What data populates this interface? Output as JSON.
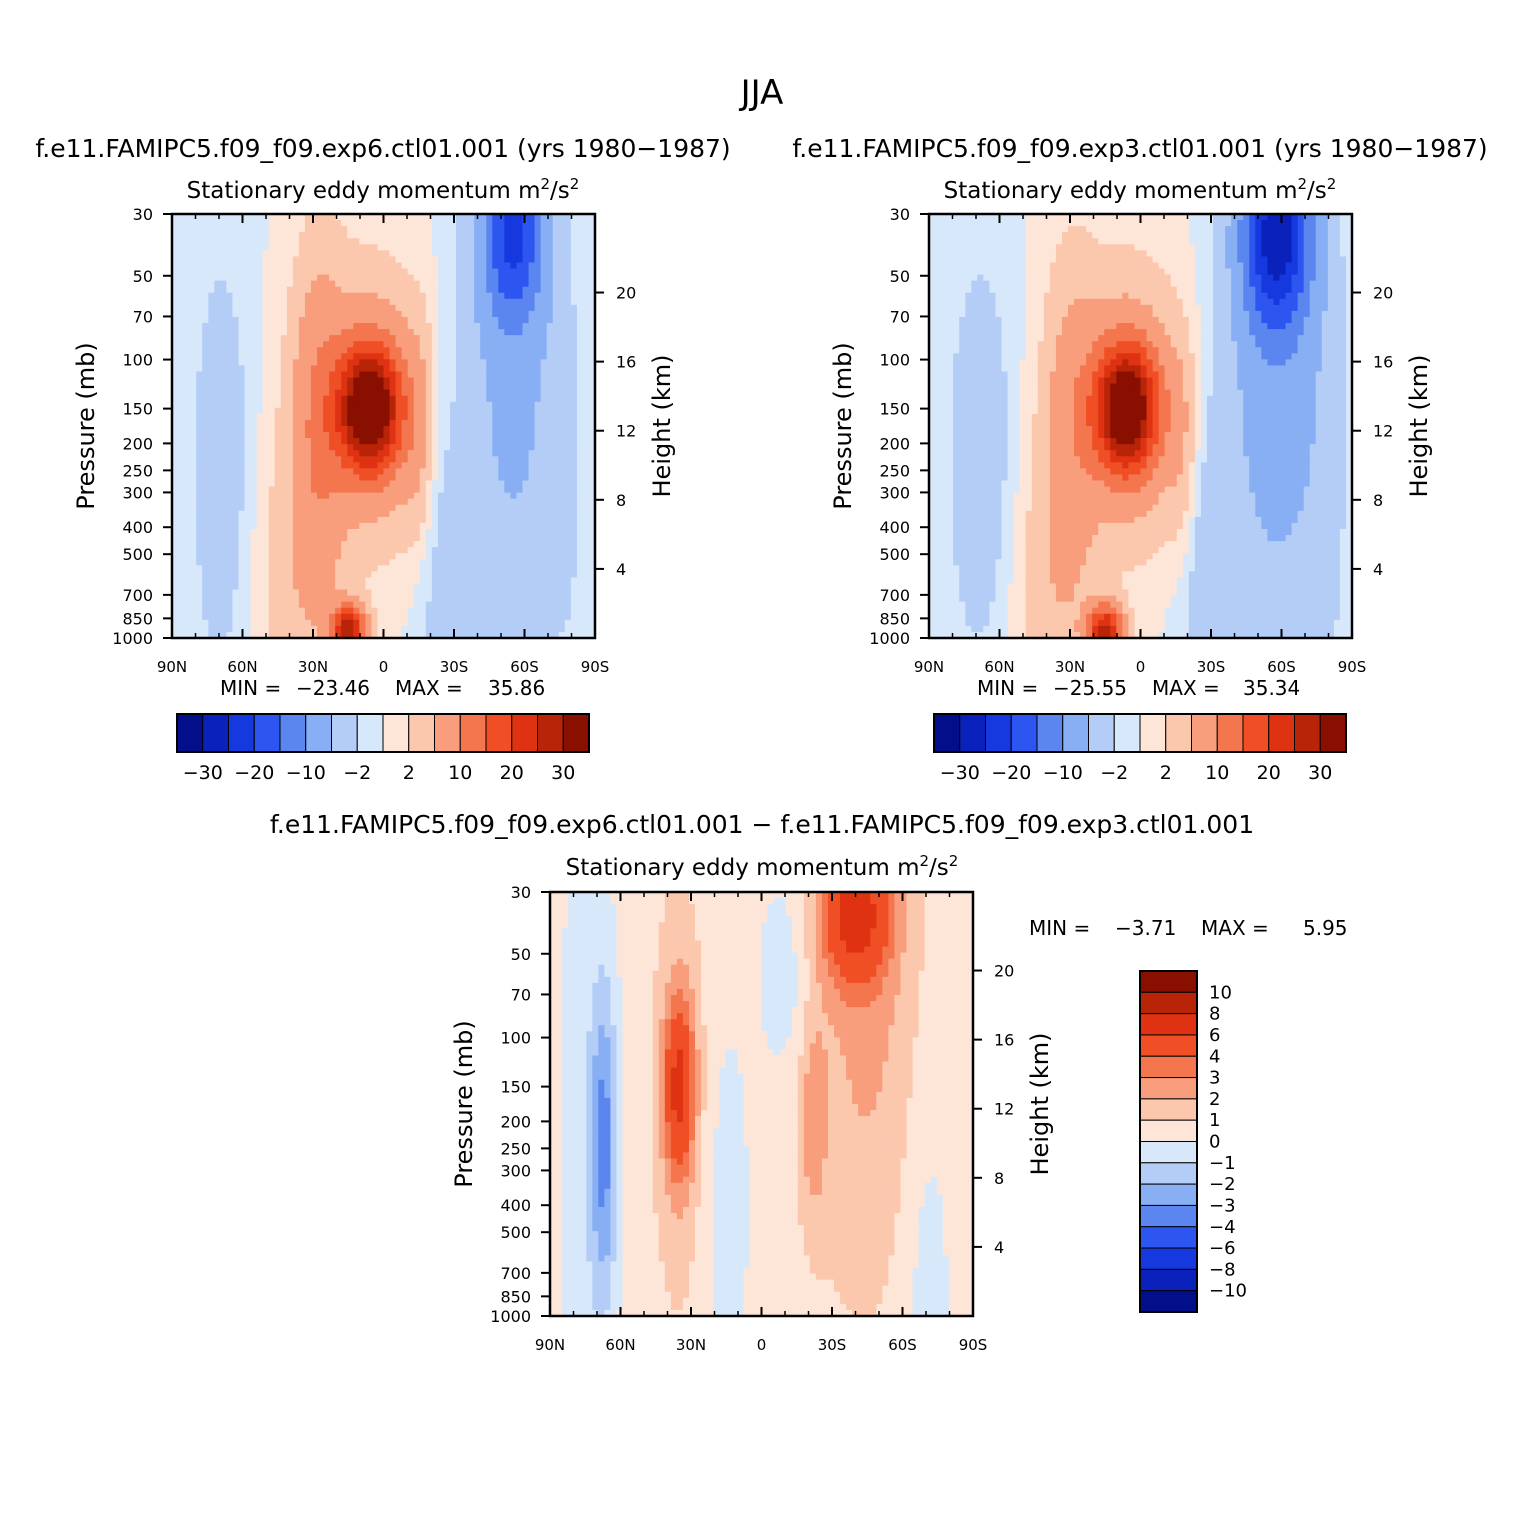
{
  "figure": {
    "title": "JJA"
  },
  "colors": {
    "pos": [
      "#fde6d8",
      "#fbc8ae",
      "#f89e7c",
      "#f4764e",
      "#f04f25",
      "#de3212",
      "#b82408",
      "#891000"
    ],
    "neg": [
      "#d8e8fb",
      "#b4cdf7",
      "#88aef3",
      "#5b86f0",
      "#2d55ef",
      "#1638df",
      "#0a22bb",
      "#030f8a"
    ],
    "palette": [
      "#030f8a",
      "#0a22bb",
      "#1638df",
      "#2d55ef",
      "#5b86f0",
      "#88aef3",
      "#b4cdf7",
      "#d8e8fb",
      "#fde6d8",
      "#fbc8ae",
      "#f89e7c",
      "#f4764e",
      "#f04f25",
      "#de3212",
      "#b82408",
      "#891000"
    ]
  },
  "chart_data": [
    {
      "type": "heatmap",
      "title": "f.e11.FAMIPC5.f09_f09.exp6.ctl01.001 (yrs 1980−1987)",
      "subtitle": "Stationary eddy momentum",
      "units_base": "m",
      "units_mid": "/s",
      "units_exp": "2",
      "xlabel": "",
      "ylabel": "Pressure (mb)",
      "y2label": "Height (km)",
      "xlim": [
        90,
        -90
      ],
      "x_ticks": [
        "90N",
        "60N",
        "30N",
        "0",
        "30S",
        "60S",
        "90S"
      ],
      "ylim": [
        30,
        1000
      ],
      "y_ticks": [
        "30",
        "50",
        "70",
        "100",
        "150",
        "200",
        "250",
        "300",
        "400",
        "500",
        "700",
        "850",
        "1000"
      ],
      "y2_ticks": [
        "20",
        "16",
        "12",
        "8",
        "4"
      ],
      "min_label": "MIN =",
      "min_value": "−23.46",
      "max_label": "MAX =",
      "max_value": "35.86",
      "colorbar_labels": [
        "−30",
        "−20",
        "−10",
        "−2",
        "2",
        "10",
        "20",
        "30"
      ],
      "levels": [
        -30,
        -25,
        -20,
        -15,
        -10,
        -5,
        -2,
        0,
        2,
        5,
        10,
        15,
        20,
        25,
        30
      ],
      "blobs": [
        {
          "lat": 6,
          "p": 150,
          "amp": 34,
          "slat": 9,
          "sz": 0.35
        },
        {
          "lat": 6,
          "p": 150,
          "amp": 8,
          "slat": 18,
          "sz": 0.8
        },
        {
          "lat": 28,
          "p": 180,
          "amp": 7,
          "slat": 8,
          "sz": 1.1
        },
        {
          "lat": 15,
          "p": 950,
          "amp": 28,
          "slat": 5,
          "sz": 0.15
        },
        {
          "lat": -15,
          "p": 200,
          "amp": 4,
          "slat": 5,
          "sz": 0.7
        },
        {
          "lat": 69,
          "p": 250,
          "amp": -4.2,
          "slat": 9,
          "sz": 1.3
        },
        {
          "lat": -25,
          "p": 500,
          "amp": -3.5,
          "slat": 9,
          "sz": 1.2
        },
        {
          "lat": -55,
          "p": 35,
          "amp": -18,
          "slat": 9,
          "sz": 0.5
        },
        {
          "lat": -55,
          "p": 120,
          "amp": -6,
          "slat": 15,
          "sz": 1.6
        },
        {
          "lat": 40,
          "p": 700,
          "amp": 3,
          "slat": 12,
          "sz": 0.9
        },
        {
          "lat": -80,
          "p": 600,
          "amp": -1.2,
          "slat": 8,
          "sz": 2
        }
      ]
    },
    {
      "type": "heatmap",
      "title": "f.e11.FAMIPC5.f09_f09.exp3.ctl01.001 (yrs 1980−1987)",
      "subtitle": "Stationary eddy momentum",
      "units_base": "m",
      "units_mid": "/s",
      "units_exp": "2",
      "xlabel": "",
      "ylabel": "Pressure (mb)",
      "y2label": "Height (km)",
      "xlim": [
        90,
        -90
      ],
      "x_ticks": [
        "90N",
        "60N",
        "30N",
        "0",
        "30S",
        "60S",
        "90S"
      ],
      "ylim": [
        30,
        1000
      ],
      "y_ticks": [
        "30",
        "50",
        "70",
        "100",
        "150",
        "200",
        "250",
        "300",
        "400",
        "500",
        "700",
        "850",
        "1000"
      ],
      "y2_ticks": [
        "20",
        "16",
        "12",
        "8",
        "4"
      ],
      "min_label": "MIN =",
      "min_value": "−25.55",
      "max_label": "MAX =",
      "max_value": "35.34",
      "colorbar_labels": [
        "−30",
        "−20",
        "−10",
        "−2",
        "2",
        "10",
        "20",
        "30"
      ],
      "levels": [
        -30,
        -25,
        -20,
        -15,
        -10,
        -5,
        -2,
        0,
        2,
        5,
        10,
        15,
        20,
        25,
        30
      ],
      "blobs": [
        {
          "lat": 6,
          "p": 150,
          "amp": 33,
          "slat": 9,
          "sz": 0.35
        },
        {
          "lat": 6,
          "p": 150,
          "amp": 8,
          "slat": 18,
          "sz": 0.8
        },
        {
          "lat": 30,
          "p": 190,
          "amp": 5,
          "slat": 8,
          "sz": 1.1
        },
        {
          "lat": 15,
          "p": 950,
          "amp": 27,
          "slat": 5,
          "sz": 0.15
        },
        {
          "lat": -18,
          "p": 220,
          "amp": 4,
          "slat": 5,
          "sz": 0.7
        },
        {
          "lat": 68,
          "p": 230,
          "amp": -4.5,
          "slat": 10,
          "sz": 1.2
        },
        {
          "lat": -27,
          "p": 500,
          "amp": -4,
          "slat": 9,
          "sz": 1.1
        },
        {
          "lat": -58,
          "p": 35,
          "amp": -24,
          "slat": 10,
          "sz": 0.55
        },
        {
          "lat": -58,
          "p": 120,
          "amp": -7,
          "slat": 16,
          "sz": 1.6
        },
        {
          "lat": 40,
          "p": 700,
          "amp": 3,
          "slat": 12,
          "sz": 0.9
        },
        {
          "lat": -80,
          "p": 600,
          "amp": -1.2,
          "slat": 8,
          "sz": 2
        }
      ]
    },
    {
      "type": "heatmap",
      "title": "f.e11.FAMIPC5.f09_f09.exp6.ctl01.001 − f.e11.FAMIPC5.f09_f09.exp3.ctl01.001",
      "subtitle": "Stationary eddy momentum",
      "units_base": "m",
      "units_mid": "/s",
      "units_exp": "2",
      "xlabel": "",
      "ylabel": "Pressure (mb)",
      "y2label": "Height (km)",
      "xlim": [
        90,
        -90
      ],
      "x_ticks": [
        "90N",
        "60N",
        "30N",
        "0",
        "30S",
        "60S",
        "90S"
      ],
      "ylim": [
        30,
        1000
      ],
      "y_ticks": [
        "30",
        "50",
        "70",
        "100",
        "150",
        "200",
        "250",
        "300",
        "400",
        "500",
        "700",
        "850",
        "1000"
      ],
      "y2_ticks": [
        "20",
        "16",
        "12",
        "8",
        "4"
      ],
      "min_label": "MIN =",
      "min_value": "−3.71",
      "max_label": "MAX =",
      "max_value": "5.95",
      "colorbar_labels": [
        "10",
        "8",
        "6",
        "4",
        "3",
        "2",
        "1",
        "0",
        "−1",
        "−2",
        "−3",
        "−4",
        "−6",
        "−8",
        "−10"
      ],
      "levels": [
        -10,
        -8,
        -6,
        -4,
        -3,
        -2,
        -1,
        0,
        1,
        2,
        3,
        4,
        6,
        8,
        10
      ],
      "blobs": [
        {
          "lat": 0,
          "p": 300,
          "amp": 0.45,
          "slat": 200,
          "sz": 10
        },
        {
          "lat": 75,
          "p": 300,
          "amp": -0.9,
          "slat": 8,
          "sz": 3
        },
        {
          "lat": 67,
          "p": 240,
          "amp": -3.5,
          "slat": 4,
          "sz": 0.9
        },
        {
          "lat": 35,
          "p": 150,
          "amp": 5,
          "slat": 4.5,
          "sz": 0.5
        },
        {
          "lat": 35,
          "p": 160,
          "amp": 1.5,
          "slat": 8,
          "sz": 1.3
        },
        {
          "lat": -40,
          "p": 36,
          "amp": 5.5,
          "slat": 10,
          "sz": 0.4
        },
        {
          "lat": -45,
          "p": 80,
          "amp": 1.8,
          "slat": 18,
          "sz": 1.7
        },
        {
          "lat": -22,
          "p": 200,
          "amp": 1.8,
          "slat": 4,
          "sz": 0.6
        },
        {
          "lat": -10,
          "p": 60,
          "amp": -1.2,
          "slat": 8,
          "sz": 0.6
        },
        {
          "lat": -70,
          "p": 700,
          "amp": -1,
          "slat": 8,
          "sz": 1.5
        },
        {
          "lat": 15,
          "p": 400,
          "amp": -0.9,
          "slat": 8,
          "sz": 1.2
        }
      ]
    }
  ]
}
